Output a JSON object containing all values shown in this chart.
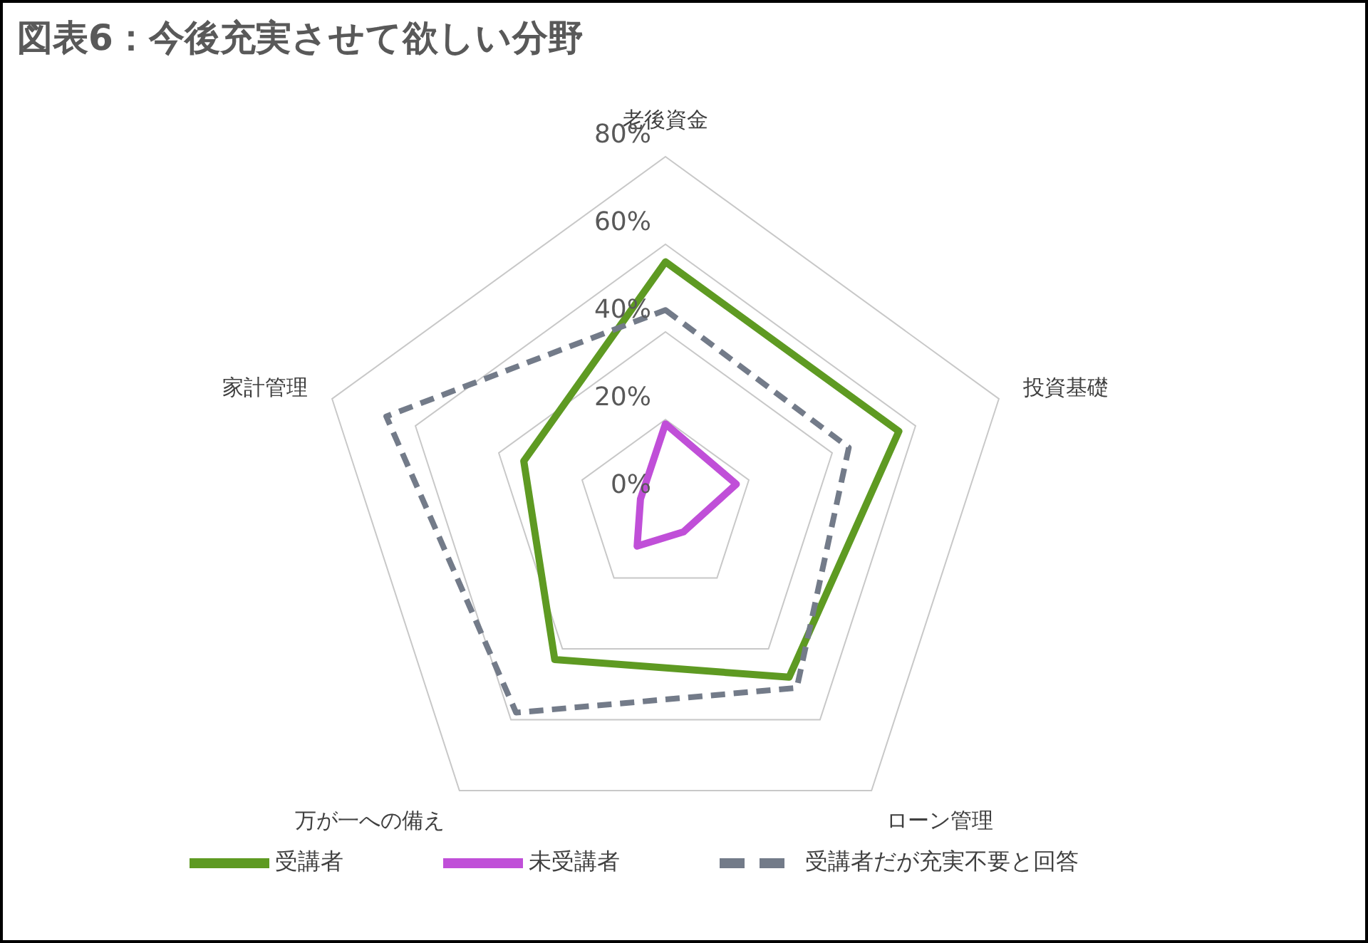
{
  "chart_data": {
    "type": "radar",
    "title": "図表6：今後充実させて欲しい分野",
    "categories": [
      "老後資金",
      "投資基礎",
      "ローン管理",
      "万が一への備え",
      "家計管理"
    ],
    "ylim": [
      0,
      80
    ],
    "yticks": [
      {
        "value": 0,
        "label": "0%"
      },
      {
        "value": 20,
        "label": "20%"
      },
      {
        "value": 40,
        "label": "40%"
      },
      {
        "value": 60,
        "label": "60%"
      },
      {
        "value": 80,
        "label": "80%"
      }
    ],
    "grid": true,
    "legend": "bottom",
    "marker": "none",
    "series": [
      {
        "name": "受講者",
        "color": "#5e9a22",
        "values": [
          56,
          56,
          48,
          43,
          34
        ],
        "line_style": "solid"
      },
      {
        "name": "未受講者",
        "color": "#c04fd8",
        "values": [
          19,
          17,
          7,
          11,
          6
        ],
        "line_style": "solid"
      },
      {
        "name": "受講者だが充実不要と回答",
        "color": "#737b89",
        "values": [
          45,
          44,
          51,
          58,
          67
        ],
        "line_style": "dashed"
      }
    ]
  }
}
